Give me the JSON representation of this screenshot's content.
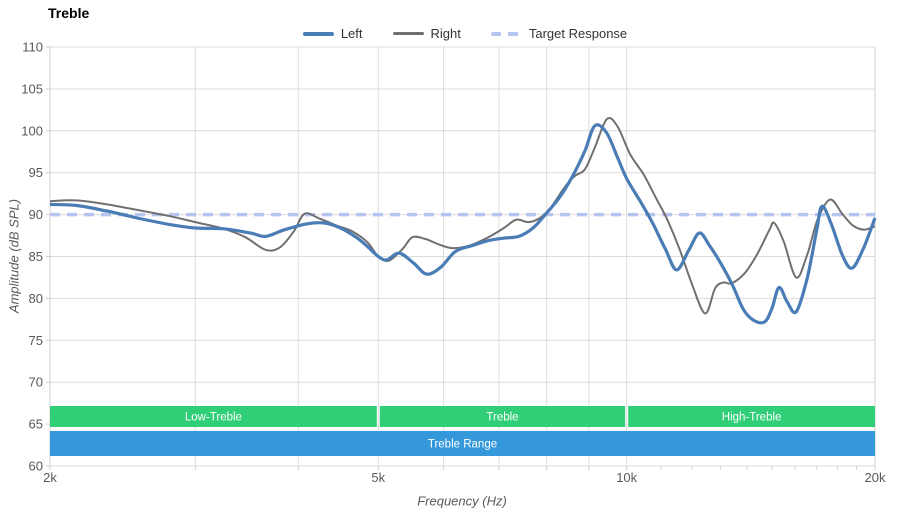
{
  "title": "Treble",
  "axes": {
    "x": {
      "title": "Frequency (Hz)"
    },
    "y": {
      "title": "Amplitude (dB SPL)"
    }
  },
  "colors": {
    "grid": "#dcdcdc",
    "axis_border": "#d0d0d0",
    "tick_text": "#595959",
    "band_text": "#ffffff",
    "band_green": "#30ce77",
    "band_blue": "#3498db"
  },
  "chart_data": {
    "type": "line",
    "title": "Treble",
    "xlabel": "Frequency (Hz)",
    "ylabel": "Amplitude (dB SPL)",
    "x_scale": "log",
    "xlim": [
      2000,
      20000
    ],
    "ylim": [
      60,
      110
    ],
    "grid": true,
    "legend_position": "top-center",
    "y_ticks": [
      110,
      105,
      100,
      95,
      90,
      85,
      80,
      75,
      70,
      65,
      60
    ],
    "x_ticks": [
      {
        "value": 2000,
        "label": "2k"
      },
      {
        "value": 5000,
        "label": "5k"
      },
      {
        "value": 10000,
        "label": "10k"
      },
      {
        "value": 20000,
        "label": "20k"
      }
    ],
    "x_gridlines": [
      2000,
      3000,
      4000,
      5000,
      6000,
      7000,
      8000,
      9000,
      10000,
      20000
    ],
    "x_minor_ticks": [
      2000,
      3000,
      4000,
      5000,
      6000,
      7000,
      8000,
      9000,
      10000,
      11000,
      12000,
      13000,
      14000,
      15000,
      16000,
      17000,
      18000,
      19000,
      20000
    ],
    "series": [
      {
        "name": "Left",
        "color": "#4a7cb5",
        "width": 3.2,
        "dash": null,
        "points": [
          [
            2000,
            91.2
          ],
          [
            2150,
            91.1
          ],
          [
            2350,
            90.4
          ],
          [
            2550,
            89.6
          ],
          [
            2800,
            88.8
          ],
          [
            3000,
            88.4
          ],
          [
            3250,
            88.3
          ],
          [
            3500,
            87.8
          ],
          [
            3650,
            87.4
          ],
          [
            3850,
            88.2
          ],
          [
            4100,
            88.9
          ],
          [
            4300,
            89.0
          ],
          [
            4500,
            88.4
          ],
          [
            4700,
            87.3
          ],
          [
            4850,
            86.2
          ],
          [
            5000,
            85.0
          ],
          [
            5120,
            84.6
          ],
          [
            5300,
            85.4
          ],
          [
            5520,
            84.2
          ],
          [
            5720,
            82.9
          ],
          [
            5950,
            83.7
          ],
          [
            6200,
            85.6
          ],
          [
            6500,
            86.3
          ],
          [
            6800,
            86.9
          ],
          [
            7100,
            87.2
          ],
          [
            7400,
            87.4
          ],
          [
            7700,
            88.4
          ],
          [
            8000,
            90.2
          ],
          [
            8300,
            92.1
          ],
          [
            8600,
            94.6
          ],
          [
            8900,
            97.6
          ],
          [
            9150,
            100.6
          ],
          [
            9450,
            99.8
          ],
          [
            9750,
            96.8
          ],
          [
            10000,
            94.3
          ],
          [
            10400,
            91.5
          ],
          [
            10750,
            89.0
          ],
          [
            11150,
            85.8
          ],
          [
            11500,
            83.4
          ],
          [
            11900,
            85.8
          ],
          [
            12250,
            87.8
          ],
          [
            12600,
            86.3
          ],
          [
            13000,
            84.2
          ],
          [
            13450,
            81.5
          ],
          [
            13850,
            78.7
          ],
          [
            14250,
            77.4
          ],
          [
            14700,
            77.2
          ],
          [
            15000,
            78.8
          ],
          [
            15300,
            81.3
          ],
          [
            15650,
            79.6
          ],
          [
            16050,
            78.4
          ],
          [
            16550,
            82.4
          ],
          [
            17000,
            88.2
          ],
          [
            17250,
            91.0
          ],
          [
            17700,
            88.9
          ],
          [
            18250,
            85.2
          ],
          [
            18750,
            83.6
          ],
          [
            19350,
            85.9
          ],
          [
            20000,
            89.6
          ]
        ]
      },
      {
        "name": "Right",
        "color": "#707070",
        "width": 2,
        "dash": null,
        "points": [
          [
            2000,
            91.6
          ],
          [
            2150,
            91.7
          ],
          [
            2350,
            91.2
          ],
          [
            2600,
            90.4
          ],
          [
            2800,
            89.8
          ],
          [
            3000,
            89.1
          ],
          [
            3250,
            88.3
          ],
          [
            3450,
            87.3
          ],
          [
            3650,
            85.8
          ],
          [
            3800,
            86.1
          ],
          [
            3950,
            88.0
          ],
          [
            4070,
            90.1
          ],
          [
            4250,
            89.5
          ],
          [
            4450,
            88.7
          ],
          [
            4650,
            88.0
          ],
          [
            4850,
            86.7
          ],
          [
            5000,
            85.0
          ],
          [
            5150,
            84.5
          ],
          [
            5350,
            85.9
          ],
          [
            5500,
            87.3
          ],
          [
            5700,
            87.1
          ],
          [
            5900,
            86.5
          ],
          [
            6150,
            86.0
          ],
          [
            6450,
            86.3
          ],
          [
            6800,
            87.3
          ],
          [
            7100,
            88.4
          ],
          [
            7350,
            89.4
          ],
          [
            7600,
            89.1
          ],
          [
            7850,
            89.6
          ],
          [
            8100,
            90.9
          ],
          [
            8400,
            93.2
          ],
          [
            8650,
            94.6
          ],
          [
            8900,
            95.4
          ],
          [
            9150,
            98.0
          ],
          [
            9460,
            101.4
          ],
          [
            9750,
            100.5
          ],
          [
            10100,
            97.2
          ],
          [
            10500,
            94.7
          ],
          [
            10850,
            92.0
          ],
          [
            11200,
            89.4
          ],
          [
            11600,
            85.8
          ],
          [
            12000,
            81.7
          ],
          [
            12450,
            78.2
          ],
          [
            12800,
            81.2
          ],
          [
            13100,
            81.9
          ],
          [
            13400,
            81.8
          ],
          [
            13900,
            83.0
          ],
          [
            14400,
            85.3
          ],
          [
            14900,
            88.2
          ],
          [
            15100,
            89.0
          ],
          [
            15500,
            86.8
          ],
          [
            16050,
            82.5
          ],
          [
            16550,
            85.2
          ],
          [
            17050,
            89.5
          ],
          [
            17650,
            91.8
          ],
          [
            18250,
            90.1
          ],
          [
            18800,
            88.7
          ],
          [
            19400,
            88.2
          ],
          [
            20000,
            88.6
          ]
        ]
      },
      {
        "name": "Target Response",
        "color": "#b6c4f1",
        "width": 3.5,
        "dash": [
          10,
          7
        ],
        "points": [
          [
            2000,
            90
          ],
          [
            20000,
            90
          ]
        ]
      }
    ],
    "bands": [
      {
        "row": 0,
        "color": "#30ce77",
        "segments": [
          {
            "label": "Low-Treble",
            "from": 2000,
            "to": 5000
          },
          {
            "label": "Treble",
            "from": 5000,
            "to": 10000
          },
          {
            "label": "High-Treble",
            "from": 10000,
            "to": 20000
          }
        ]
      },
      {
        "row": 1,
        "color": "#3498db",
        "segments": [
          {
            "label": "Treble Range",
            "from": 2000,
            "to": 20000
          }
        ]
      }
    ]
  }
}
